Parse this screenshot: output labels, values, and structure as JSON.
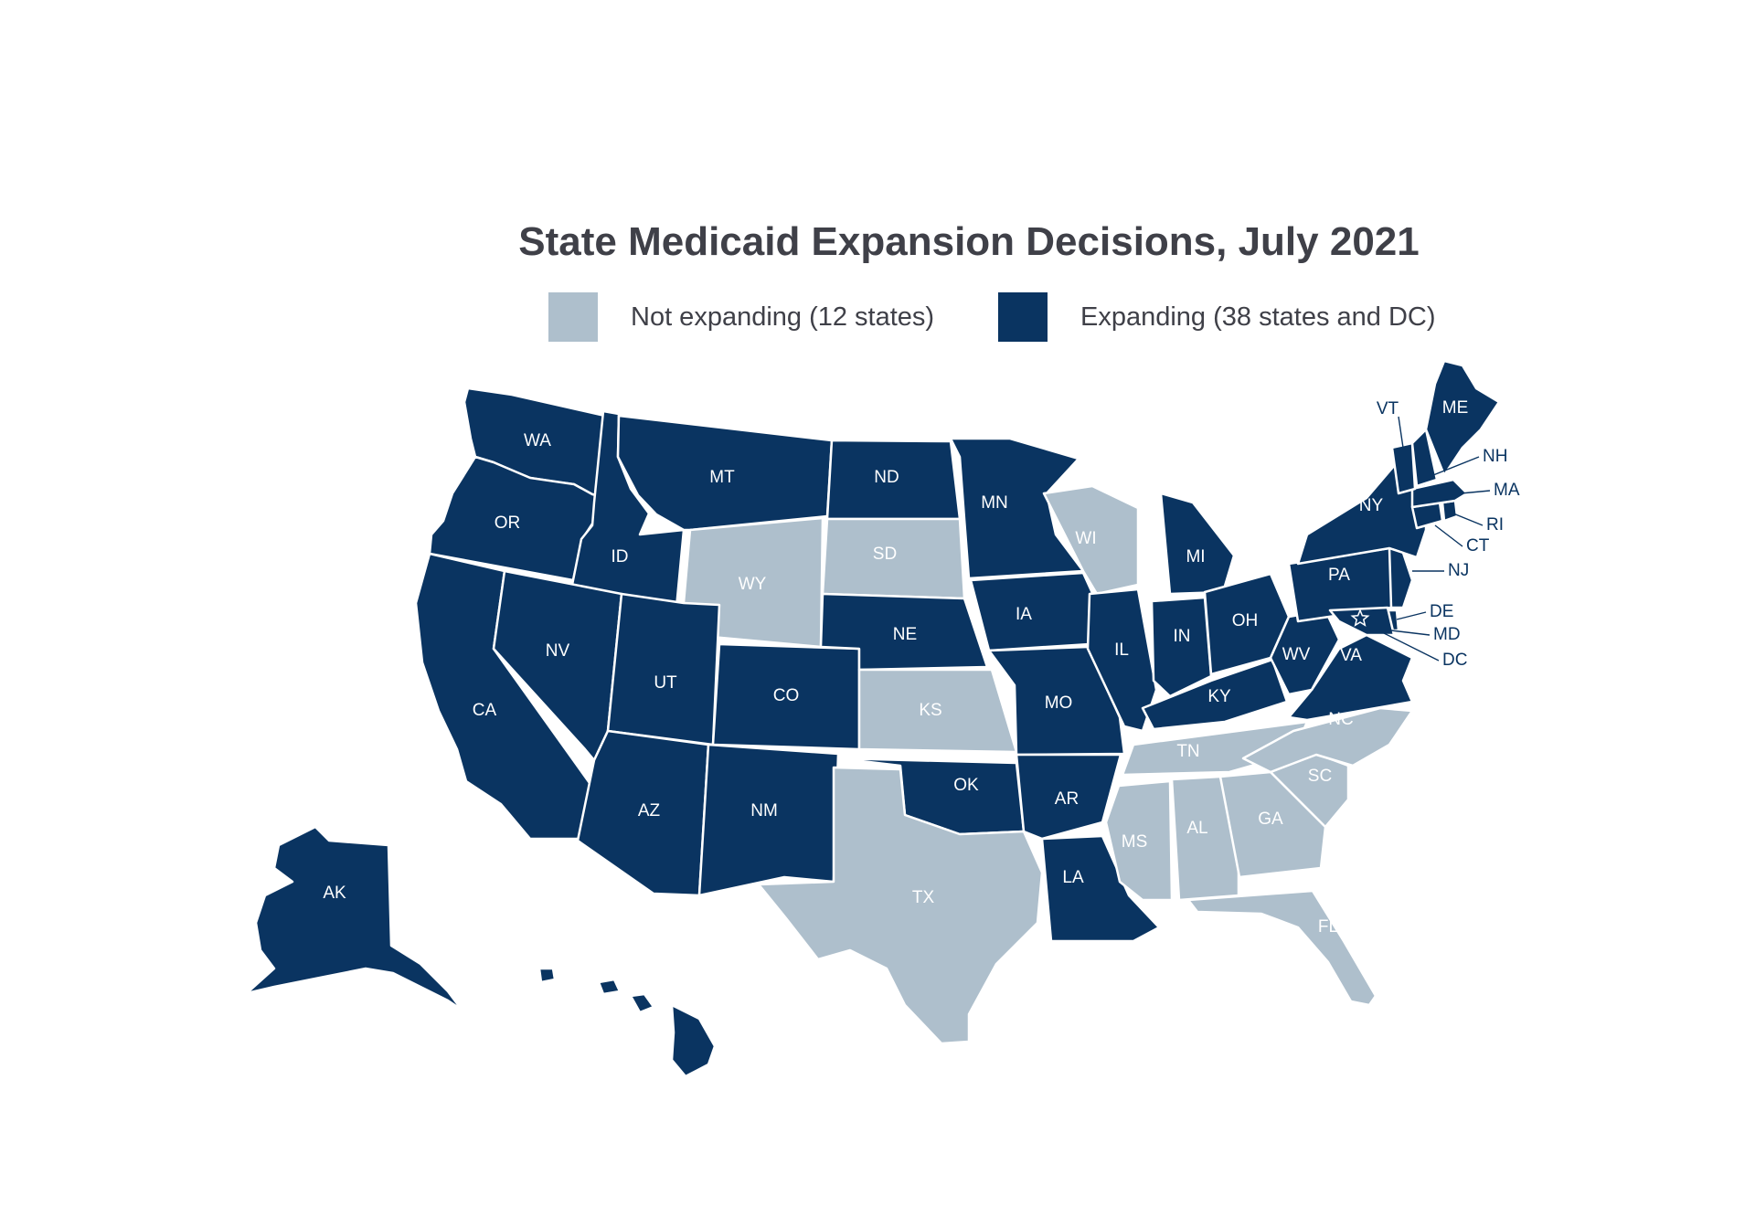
{
  "title": "State Medicaid Expansion Decisions, July 2021",
  "colors": {
    "expanding": "#0a3461",
    "not_expanding": "#aebfcc",
    "border": "#ffffff",
    "label_on_dark": "#ffffff",
    "label_on_light": "#ffffff",
    "callout": "#0a3461"
  },
  "legend": [
    {
      "status": "not_expanding",
      "label": "Not expanding (12 states)"
    },
    {
      "status": "expanding",
      "label": "Expanding (38 states and DC)"
    }
  ],
  "states": [
    {
      "abbr": "WA",
      "status": "expanding"
    },
    {
      "abbr": "OR",
      "status": "expanding"
    },
    {
      "abbr": "CA",
      "status": "expanding"
    },
    {
      "abbr": "ID",
      "status": "expanding"
    },
    {
      "abbr": "NV",
      "status": "expanding"
    },
    {
      "abbr": "MT",
      "status": "expanding"
    },
    {
      "abbr": "WY",
      "status": "not_expanding"
    },
    {
      "abbr": "UT",
      "status": "expanding"
    },
    {
      "abbr": "AZ",
      "status": "expanding"
    },
    {
      "abbr": "CO",
      "status": "expanding"
    },
    {
      "abbr": "NM",
      "status": "expanding"
    },
    {
      "abbr": "ND",
      "status": "expanding"
    },
    {
      "abbr": "SD",
      "status": "not_expanding"
    },
    {
      "abbr": "NE",
      "status": "expanding"
    },
    {
      "abbr": "KS",
      "status": "not_expanding"
    },
    {
      "abbr": "OK",
      "status": "expanding"
    },
    {
      "abbr": "TX",
      "status": "not_expanding"
    },
    {
      "abbr": "MN",
      "status": "expanding"
    },
    {
      "abbr": "IA",
      "status": "expanding"
    },
    {
      "abbr": "MO",
      "status": "expanding"
    },
    {
      "abbr": "AR",
      "status": "expanding"
    },
    {
      "abbr": "LA",
      "status": "expanding"
    },
    {
      "abbr": "WI",
      "status": "not_expanding"
    },
    {
      "abbr": "IL",
      "status": "expanding"
    },
    {
      "abbr": "MI",
      "status": "expanding"
    },
    {
      "abbr": "IN",
      "status": "expanding"
    },
    {
      "abbr": "OH",
      "status": "expanding"
    },
    {
      "abbr": "KY",
      "status": "expanding"
    },
    {
      "abbr": "TN",
      "status": "not_expanding"
    },
    {
      "abbr": "MS",
      "status": "not_expanding"
    },
    {
      "abbr": "AL",
      "status": "not_expanding"
    },
    {
      "abbr": "GA",
      "status": "not_expanding"
    },
    {
      "abbr": "FL",
      "status": "not_expanding"
    },
    {
      "abbr": "SC",
      "status": "not_expanding"
    },
    {
      "abbr": "NC",
      "status": "not_expanding"
    },
    {
      "abbr": "VA",
      "status": "expanding"
    },
    {
      "abbr": "WV",
      "status": "expanding"
    },
    {
      "abbr": "PA",
      "status": "expanding"
    },
    {
      "abbr": "NY",
      "status": "expanding"
    },
    {
      "abbr": "NJ",
      "status": "expanding"
    },
    {
      "abbr": "DE",
      "status": "expanding"
    },
    {
      "abbr": "MD",
      "status": "expanding"
    },
    {
      "abbr": "DC",
      "status": "expanding"
    },
    {
      "abbr": "CT",
      "status": "expanding"
    },
    {
      "abbr": "RI",
      "status": "expanding"
    },
    {
      "abbr": "MA",
      "status": "expanding"
    },
    {
      "abbr": "VT",
      "status": "expanding"
    },
    {
      "abbr": "NH",
      "status": "expanding"
    },
    {
      "abbr": "ME",
      "status": "expanding"
    },
    {
      "abbr": "AK",
      "status": "expanding"
    },
    {
      "abbr": "HI",
      "status": "expanding"
    }
  ]
}
